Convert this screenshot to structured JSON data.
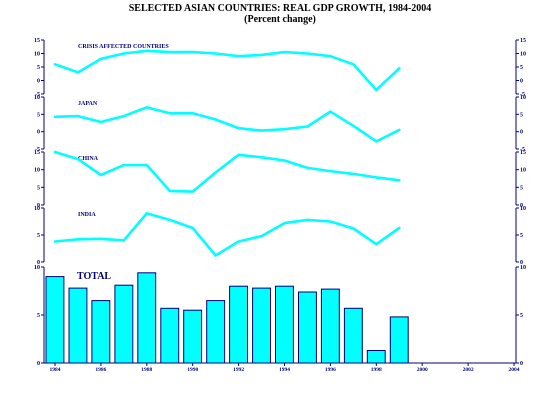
{
  "title": "SELECTED ASIAN COUNTRIES: REAL GDP GROWTH, 1984-2004",
  "subtitle": "(Percent change)",
  "chart_data": [
    {
      "type": "line",
      "title": "CRISIS AFFECTED COUNTRIES",
      "ylim": [
        -5,
        15
      ],
      "yticks": [
        "15",
        "10",
        "5",
        "0",
        "-5"
      ],
      "x": [
        1984,
        1985,
        1986,
        1987,
        1988,
        1989,
        1990,
        1991,
        1992,
        1993,
        1994,
        1995,
        1996,
        1997,
        1998,
        1999
      ],
      "values": [
        6,
        3,
        8,
        10,
        11,
        10.5,
        10.5,
        10,
        9,
        9.5,
        10.5,
        10,
        9,
        6,
        -3.5,
        4.5
      ]
    },
    {
      "type": "line",
      "title": "JAPAN",
      "ylim": [
        -5,
        10
      ],
      "yticks": [
        "10",
        "5",
        "0",
        "-5"
      ],
      "x": [
        1984,
        1985,
        1986,
        1987,
        1988,
        1989,
        1990,
        1991,
        1992,
        1993,
        1994,
        1995,
        1996,
        1997,
        1998,
        1999
      ],
      "values": [
        4.3,
        4.5,
        2.8,
        4.5,
        7,
        5.3,
        5.3,
        3.5,
        1,
        0.3,
        0.7,
        1.5,
        5.8,
        1.7,
        -2.8,
        0.5
      ]
    },
    {
      "type": "line",
      "title": "CHINA",
      "ylim": [
        0,
        15
      ],
      "yticks": [
        "15",
        "10",
        "5",
        "0"
      ],
      "x": [
        1984,
        1985,
        1986,
        1987,
        1988,
        1989,
        1990,
        1991,
        1992,
        1993,
        1994,
        1995,
        1996,
        1997,
        1998,
        1999
      ],
      "values": [
        15,
        13,
        8.5,
        11.3,
        11.3,
        4,
        3.8,
        9.2,
        14.2,
        13.5,
        12.6,
        10.5,
        9.6,
        8.8,
        7.8,
        7
      ]
    },
    {
      "type": "line",
      "title": "INDIA",
      "ylim": [
        0,
        10
      ],
      "yticks": [
        "10",
        "5",
        "0"
      ],
      "x": [
        1984,
        1985,
        1986,
        1987,
        1988,
        1989,
        1990,
        1991,
        1992,
        1993,
        1994,
        1995,
        1996,
        1997,
        1998,
        1999
      ],
      "values": [
        3.8,
        4.2,
        4.3,
        4,
        9,
        7.8,
        6.3,
        1.2,
        3.8,
        4.8,
        7.2,
        7.8,
        7.5,
        6.2,
        3.3,
        6.3
      ]
    },
    {
      "type": "bar",
      "title": "TOTAL",
      "ylim": [
        0,
        10
      ],
      "yticks": [
        "10",
        "5",
        "0"
      ],
      "categories": [
        1984,
        1985,
        1986,
        1987,
        1988,
        1989,
        1990,
        1991,
        1992,
        1993,
        1994,
        1995,
        1996,
        1997,
        1998,
        1999
      ],
      "values": [
        9,
        7.8,
        6.5,
        8.1,
        9.4,
        5.7,
        5.5,
        6.5,
        8,
        7.8,
        8,
        7.4,
        7.7,
        5.7,
        1.3,
        4.8
      ],
      "xticks": [
        "1984",
        "1986",
        "1988",
        "1990",
        "1992",
        "1994",
        "1996",
        "1998",
        "2000",
        "2002",
        "2004"
      ],
      "xlim": [
        1984,
        2004
      ]
    }
  ],
  "colors": {
    "series": "#00ffff",
    "axis": "#00007a"
  }
}
